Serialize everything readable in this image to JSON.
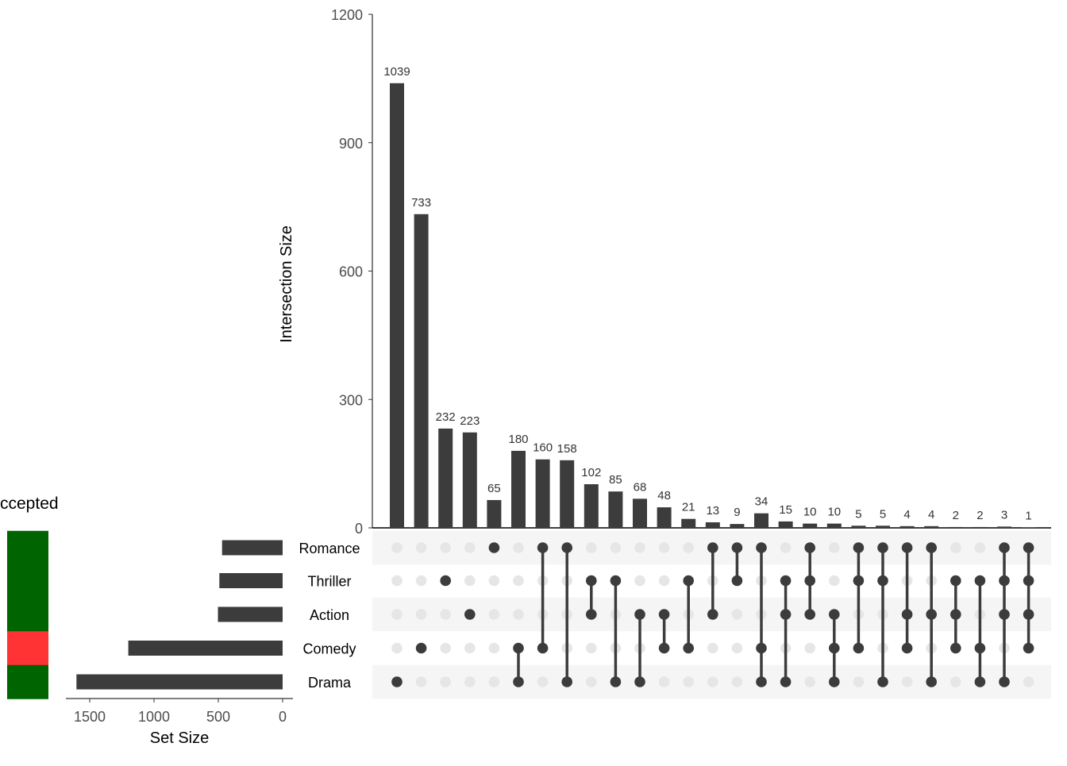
{
  "chart_data": {
    "type": "upset",
    "intersection_axis": {
      "label": "Intersection Size",
      "ylim": [
        0,
        1200
      ],
      "ticks": [
        0,
        300,
        600,
        900,
        1200
      ]
    },
    "set_size_axis": {
      "label": "Set Size",
      "ticks": [
        1500,
        1000,
        500,
        0
      ],
      "xlim": [
        1650,
        0
      ]
    },
    "sets": [
      {
        "name": "Romance",
        "size": 471,
        "accepted_color": "#006400"
      },
      {
        "name": "Thriller",
        "size": 492,
        "accepted_color": "#006400"
      },
      {
        "name": "Action",
        "size": 503,
        "accepted_color": "#006400"
      },
      {
        "name": "Comedy",
        "size": 1200,
        "accepted_color": "#FF3333"
      },
      {
        "name": "Drama",
        "size": 1603,
        "accepted_color": "#006400"
      }
    ],
    "intersections": [
      {
        "value": 1039,
        "label": "1039",
        "sets": [
          "Drama"
        ]
      },
      {
        "value": 733,
        "label": "733",
        "sets": [
          "Comedy"
        ]
      },
      {
        "value": 232,
        "label": "232",
        "sets": [
          "Thriller"
        ]
      },
      {
        "value": 223,
        "label": "223",
        "sets": [
          "Action"
        ]
      },
      {
        "value": 65,
        "label": "65",
        "sets": [
          "Romance"
        ]
      },
      {
        "value": 180,
        "label": "180",
        "sets": [
          "Comedy",
          "Drama"
        ]
      },
      {
        "value": 160,
        "label": "160",
        "sets": [
          "Romance",
          "Comedy"
        ]
      },
      {
        "value": 158,
        "label": "158",
        "sets": [
          "Romance",
          "Drama"
        ]
      },
      {
        "value": 102,
        "label": "102",
        "sets": [
          "Thriller",
          "Action"
        ]
      },
      {
        "value": 85,
        "label": "85",
        "sets": [
          "Thriller",
          "Drama"
        ]
      },
      {
        "value": 68,
        "label": "68",
        "sets": [
          "Action",
          "Drama"
        ]
      },
      {
        "value": 48,
        "label": "48",
        "sets": [
          "Action",
          "Comedy"
        ]
      },
      {
        "value": 21,
        "label": "21",
        "sets": [
          "Thriller",
          "Comedy"
        ]
      },
      {
        "value": 13,
        "label": "13",
        "sets": [
          "Romance",
          "Action"
        ]
      },
      {
        "value": 9,
        "label": "9",
        "sets": [
          "Romance",
          "Thriller"
        ]
      },
      {
        "value": 34,
        "label": "34",
        "sets": [
          "Romance",
          "Comedy",
          "Drama"
        ]
      },
      {
        "value": 15,
        "label": "15",
        "sets": [
          "Thriller",
          "Action",
          "Drama"
        ]
      },
      {
        "value": 10,
        "label": "10",
        "sets": [
          "Romance",
          "Thriller",
          "Action"
        ]
      },
      {
        "value": 10,
        "label": "10",
        "sets": [
          "Action",
          "Comedy",
          "Drama"
        ]
      },
      {
        "value": 5,
        "label": "5",
        "sets": [
          "Romance",
          "Thriller",
          "Comedy"
        ]
      },
      {
        "value": 5,
        "label": "5",
        "sets": [
          "Romance",
          "Thriller",
          "Drama"
        ]
      },
      {
        "value": 4,
        "label": "4",
        "sets": [
          "Romance",
          "Action",
          "Comedy"
        ]
      },
      {
        "value": 4,
        "label": "4",
        "sets": [
          "Romance",
          "Action",
          "Drama"
        ]
      },
      {
        "value": 2,
        "label": "2",
        "sets": [
          "Thriller",
          "Action",
          "Comedy"
        ]
      },
      {
        "value": 2,
        "label": "2",
        "sets": [
          "Thriller",
          "Comedy",
          "Drama"
        ]
      },
      {
        "value": 3,
        "label": "3",
        "sets": [
          "Romance",
          "Thriller",
          "Action",
          "Drama"
        ]
      },
      {
        "value": 1,
        "label": "1",
        "sets": [
          "Romance",
          "Thriller",
          "Action",
          "Comedy"
        ]
      }
    ],
    "annotation_title": "ccepted",
    "colors": {
      "bar": "#3c3c3c",
      "dot_inactive": "#e6e6e6",
      "stripe": "#f5f5f5",
      "accepted": "#006400",
      "rejected": "#FF3333"
    }
  }
}
